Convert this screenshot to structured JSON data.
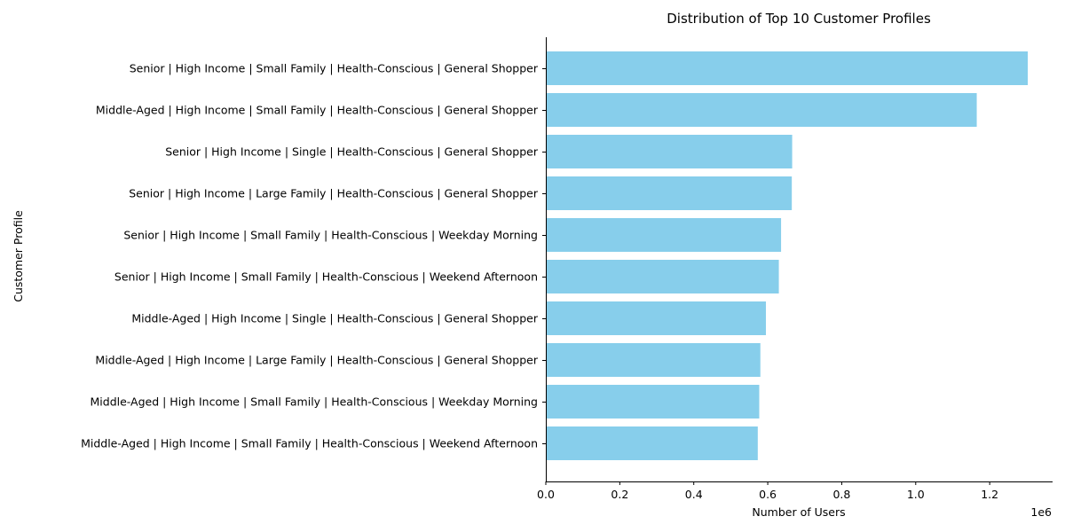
{
  "chart_data": {
    "type": "bar",
    "orientation": "horizontal",
    "title": "Distribution of Top 10 Customer Profiles",
    "xlabel": "Number of Users",
    "ylabel": "Customer Profile",
    "x_scale_label": "1e6",
    "xlim": [
      0,
      1.37
    ],
    "x_ticks": [
      0.0,
      0.2,
      0.4,
      0.6,
      0.8,
      1.0,
      1.2
    ],
    "x_tick_labels": [
      "0.0",
      "0.2",
      "0.4",
      "0.6",
      "0.8",
      "1.0",
      "1.2"
    ],
    "grid": false,
    "bar_color": "#87CEEB",
    "categories": [
      "Senior | High Income | Small Family | Health-Conscious | General Shopper",
      "Middle-Aged | High Income | Small Family | Health-Conscious | General Shopper",
      "Senior | High Income | Single | Health-Conscious | General Shopper",
      "Senior | High Income | Large Family | Health-Conscious | General Shopper",
      "Senior | High Income | Small Family | Health-Conscious | Weekday Morning",
      "Senior | High Income | Small Family | Health-Conscious | Weekend Afternoon",
      "Middle-Aged | High Income | Single | Health-Conscious | General Shopper",
      "Middle-Aged | High Income | Large Family | Health-Conscious | General Shopper",
      "Middle-Aged | High Income | Small Family | Health-Conscious | Weekday Morning",
      "Middle-Aged | High Income | Small Family | Health-Conscious | Weekend Afternoon"
    ],
    "values": [
      1.303,
      1.165,
      0.666,
      0.665,
      0.636,
      0.63,
      0.595,
      0.58,
      0.577,
      0.573
    ]
  }
}
